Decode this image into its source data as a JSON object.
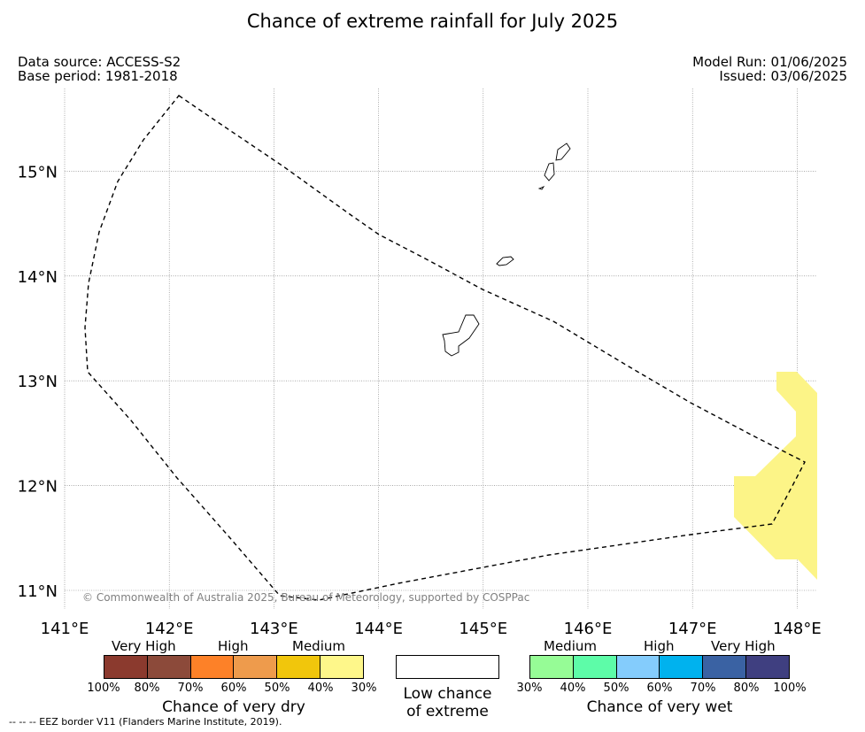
{
  "title": "Chance of extreme rainfall for July 2025",
  "meta": {
    "data_source": "Data source: ACCESS-S2",
    "base_period": "Base period: 1981-2018",
    "model_run": "Model Run: 01/06/2025",
    "issued": "Issued: 03/06/2025"
  },
  "map": {
    "lon_range": [
      141,
      148.2
    ],
    "lat_range": [
      10.8,
      15.8
    ],
    "x_ticks": [
      "141°E",
      "142°E",
      "143°E",
      "144°E",
      "145°E",
      "146°E",
      "147°E",
      "148°E"
    ],
    "y_ticks": [
      "11°N",
      "12°N",
      "13°N",
      "14°N",
      "15°N"
    ],
    "grid": true,
    "copyright": "© Commonwealth of Australia 2025, Bureau of Meteorology, supported by COSPPac",
    "anomaly_color": "#fcf487"
  },
  "legend": {
    "dry": {
      "categories": [
        "Very High",
        "High",
        "Medium"
      ],
      "ticks": [
        "100%",
        "80%",
        "70%",
        "60%",
        "50%",
        "40%",
        "30%"
      ],
      "colors": [
        "#8b3a2e",
        "#8c4a3a",
        "#fd8128",
        "#ee9b4c",
        "#f1c60c",
        "#fef78a"
      ],
      "title": "Chance of very dry"
    },
    "neutral": {
      "title_line1": "Low chance",
      "title_line2": "of extreme"
    },
    "wet": {
      "categories": [
        "Medium",
        "High",
        "Very High"
      ],
      "ticks": [
        "30%",
        "40%",
        "50%",
        "60%",
        "70%",
        "80%",
        "100%"
      ],
      "colors": [
        "#96fc96",
        "#5dfca8",
        "#84ccfc",
        "#00b2ee",
        "#3a62a3",
        "#3f3f80"
      ],
      "title": "Chance of very wet"
    }
  },
  "footnote": "--  --  -- EEZ border V11 (Flanders Marine Institute, 2019)."
}
